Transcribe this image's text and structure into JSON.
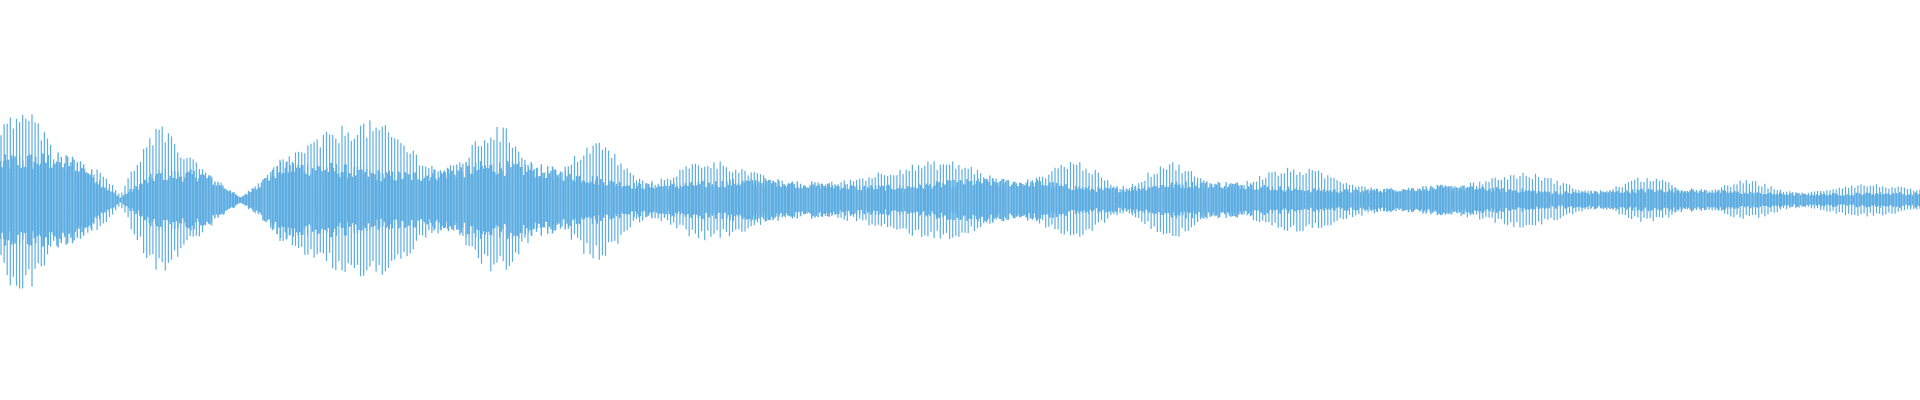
{
  "waveform": {
    "color": "#5dade2",
    "background": "#ffffff",
    "peak_envelope": [
      0.5,
      0.45,
      0.42,
      0.03,
      0.45,
      0.42,
      0.03,
      0.35,
      0.38,
      0.4,
      0.42,
      0.42,
      0.4,
      0.35,
      0.32,
      0.3,
      0.25,
      0.22,
      0.2,
      0.2,
      0.2,
      0.22,
      0.22,
      0.2,
      0.2,
      0.2,
      0.22,
      0.2,
      0.18,
      0.2,
      0.18,
      0.17,
      0.16,
      0.17,
      0.15,
      0.14,
      0.14,
      0.13,
      0.14,
      0.13,
      0.12,
      0.12,
      0.11,
      0.1,
      0.1,
      0.1,
      0.09,
      0.08,
      0.07
    ]
  }
}
